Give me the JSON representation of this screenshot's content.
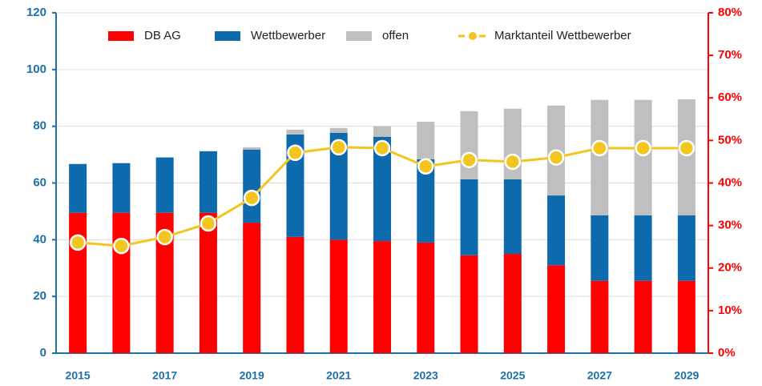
{
  "chart_data": {
    "type": "stacked-bar-line",
    "categories": [
      "2015",
      null,
      "2017",
      null,
      "2019",
      null,
      "2021",
      null,
      "2023",
      null,
      "2025",
      null,
      "2027",
      null,
      "2029"
    ],
    "series": [
      {
        "name": "DB AG",
        "color": "#ff0000",
        "values": [
          49.5,
          49.5,
          49.5,
          49.5,
          46,
          41,
          40,
          39.5,
          39,
          34.5,
          35,
          31,
          25.5,
          25.5,
          25.5
        ]
      },
      {
        "name": "Wettbewerber",
        "color": "#0d6aad",
        "values": [
          17.2,
          17.5,
          19.5,
          21.7,
          25.8,
          36.1,
          37.7,
          36.8,
          29.4,
          26.8,
          26.3,
          24.6,
          23.1,
          23.1,
          23.1
        ]
      },
      {
        "name": "offen",
        "color": "#bfbfbf",
        "values": [
          0,
          0,
          0,
          0,
          0.8,
          1.7,
          1.7,
          3.7,
          13.2,
          24,
          24.9,
          31.7,
          40.7,
          40.7,
          40.9
        ]
      },
      {
        "name": "Marktanteil Wettbewerber",
        "color": "#f2c61f",
        "axis": "y2",
        "values": [
          26,
          25.2,
          27.3,
          30.5,
          36.5,
          47.1,
          48.4,
          48.2,
          43.9,
          45.4,
          45,
          46,
          48.2,
          48.2,
          48.2
        ]
      }
    ],
    "ylim": [
      0,
      120
    ],
    "yticks": [
      0,
      20,
      40,
      60,
      80,
      100,
      120
    ],
    "y2lim": [
      0,
      80
    ],
    "y2ticks": [
      {
        "value": 0,
        "label": "0%"
      },
      {
        "value": 10,
        "label": "10%"
      },
      {
        "value": 20,
        "label": "20%"
      },
      {
        "value": 30,
        "label": "30%"
      },
      {
        "value": 40,
        "label": "40%"
      },
      {
        "value": 50,
        "label": "50%"
      },
      {
        "value": 60,
        "label": "60%"
      },
      {
        "value": 70,
        "label": "70%"
      },
      {
        "value": 80,
        "label": "80%"
      }
    ],
    "grid": true,
    "legend": "top"
  }
}
